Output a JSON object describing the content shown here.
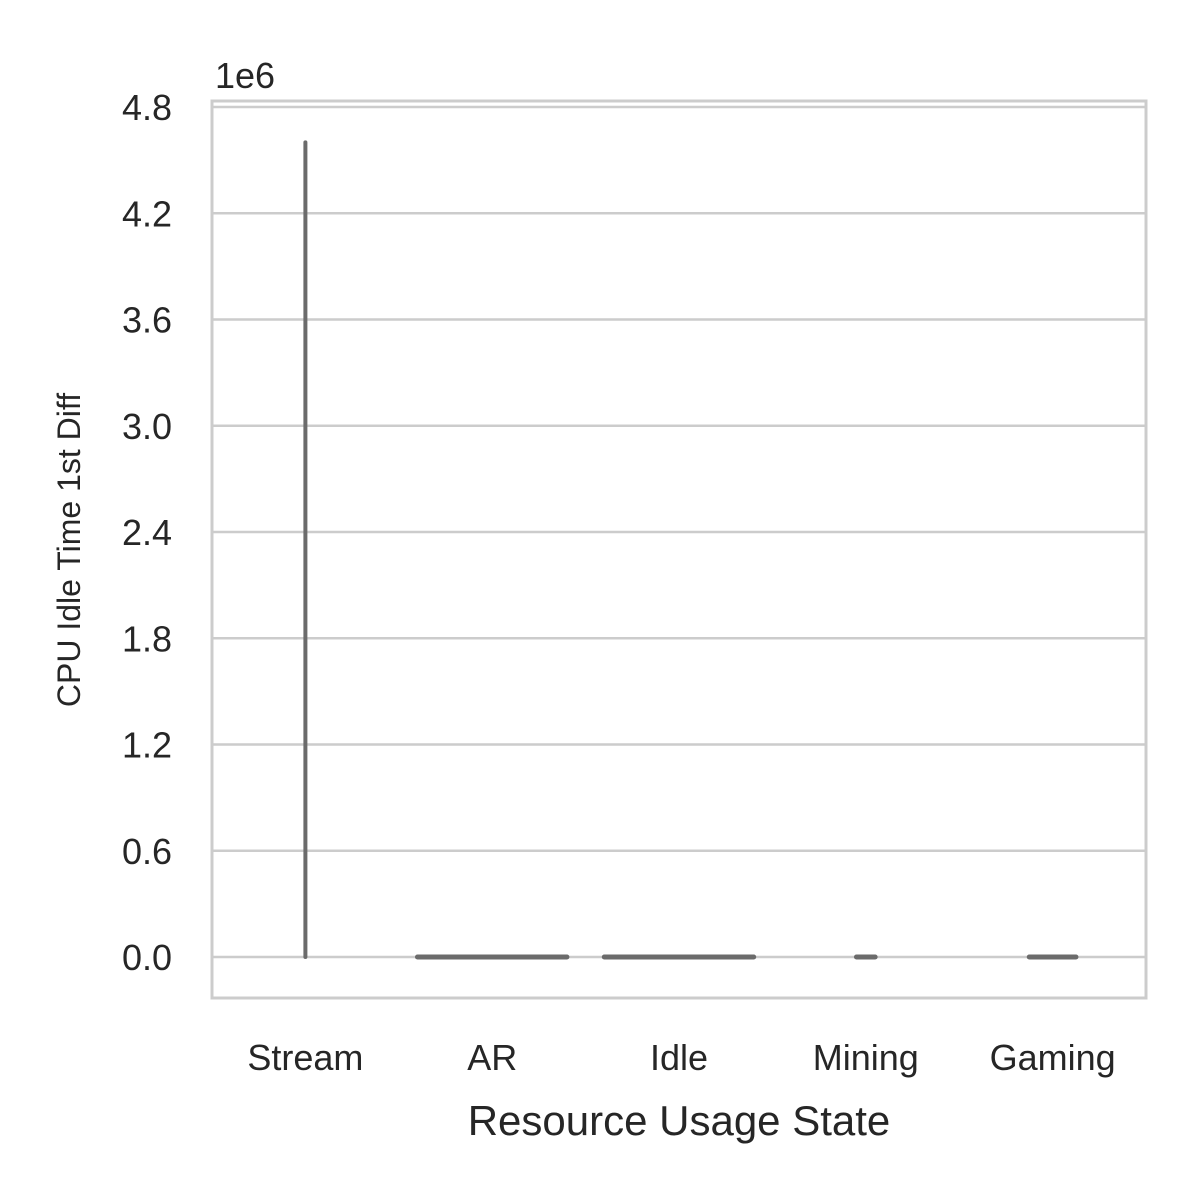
{
  "chart_data": {
    "type": "violin",
    "title": "",
    "xlabel": "Resource Usage State",
    "ylabel": "CPU Idle Time 1st Diff",
    "y_offset_label": "1e6",
    "y_scale": 1000000,
    "ylim": [
      -0.24,
      4.8
    ],
    "yticks": [
      0.0,
      0.6,
      1.2,
      1.8,
      2.4,
      3.0,
      3.6,
      4.2,
      4.8
    ],
    "ytick_labels": [
      "0.0",
      "0.6",
      "1.2",
      "1.8",
      "2.4",
      "3.0",
      "3.6",
      "4.2",
      "4.8"
    ],
    "grid": true,
    "categories": [
      "Stream",
      "AR",
      "Idle",
      "Mining",
      "Gaming"
    ],
    "series": [
      {
        "category": "Stream",
        "min": 0.0,
        "max": 4.6,
        "width_fraction": 0.02
      },
      {
        "category": "AR",
        "min": 0.0,
        "max": 0.0,
        "width_fraction": 0.8
      },
      {
        "category": "Idle",
        "min": 0.0,
        "max": 0.0,
        "width_fraction": 0.8
      },
      {
        "category": "Mining",
        "min": 0.0,
        "max": 0.0,
        "width_fraction": 0.1
      },
      {
        "category": "Gaming",
        "min": 0.0,
        "max": 0.0,
        "width_fraction": 0.25
      }
    ],
    "colors": {
      "mark": "#6b6b6b",
      "grid": "#cccccc",
      "text": "#262626"
    }
  }
}
